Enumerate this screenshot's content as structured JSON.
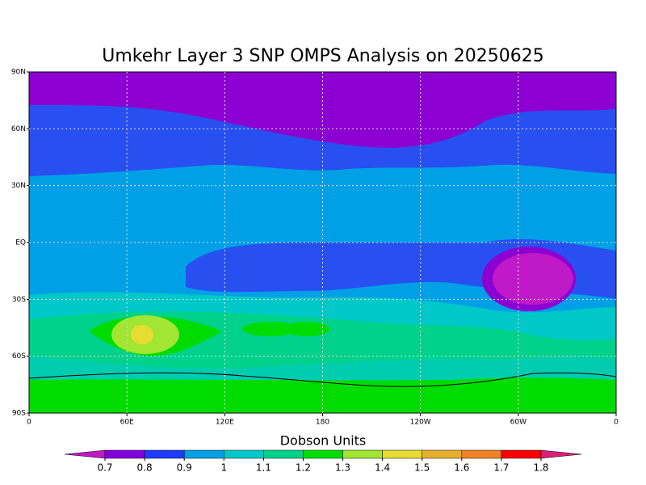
{
  "map": {
    "title": "Umkehr Layer 3 SNP OMPS Analysis on 20250625",
    "x_labels": [
      "0",
      "60E",
      "120E",
      "180",
      "120W",
      "60W",
      "0"
    ],
    "y_labels": [
      "90N",
      "60N",
      "30N",
      "EQ",
      "30S",
      "60S",
      "90S"
    ]
  },
  "colorbar": {
    "title": "Dobson Units",
    "ticks": [
      0.7,
      0.8,
      0.9,
      1,
      1.1,
      1.2,
      1.3,
      1.4,
      1.5,
      1.6,
      1.7,
      1.8
    ],
    "colors": [
      "#c01ac8",
      "#8200dc",
      "#1e3cff",
      "#00a0e6",
      "#00c8c8",
      "#00d28c",
      "#00dc00",
      "#a0e632",
      "#e6dc32",
      "#e6af2d",
      "#f08228",
      "#fa0000",
      "#dc1e78"
    ]
  }
}
